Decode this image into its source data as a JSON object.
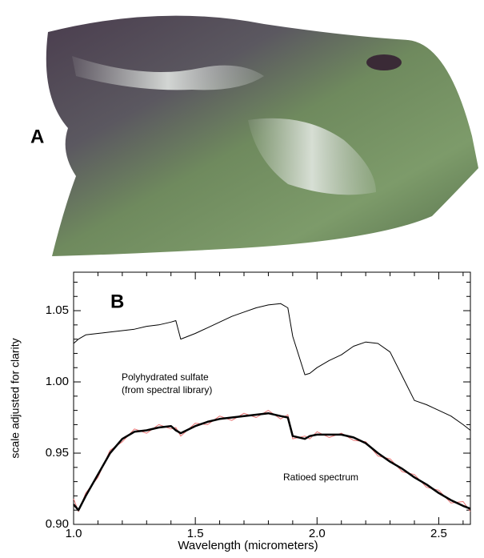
{
  "image_panel": {
    "label": "A"
  },
  "chart_data": {
    "type": "line",
    "panel_label": "B",
    "xlabel": "Wavelength (micrometers)",
    "ylabel": "scale adjusted for clarity",
    "annotations": [
      "Polyhydrated sulfate",
      "(from spectral library)",
      "Ratioed spectrum"
    ],
    "x": [
      1.0,
      1.02,
      1.05,
      1.1,
      1.15,
      1.2,
      1.25,
      1.3,
      1.35,
      1.4,
      1.42,
      1.44,
      1.5,
      1.55,
      1.6,
      1.65,
      1.7,
      1.75,
      1.8,
      1.85,
      1.88,
      1.9,
      1.95,
      1.97,
      2.0,
      2.05,
      2.1,
      2.15,
      2.2,
      2.25,
      2.3,
      2.35,
      2.4,
      2.45,
      2.5,
      2.55,
      2.6,
      2.63
    ],
    "series": [
      {
        "color": "#000000",
        "width": 1,
        "values": [
          1.027,
          1.03,
          1.033,
          1.034,
          1.035,
          1.036,
          1.037,
          1.039,
          1.04,
          1.042,
          1.043,
          1.03,
          1.034,
          1.038,
          1.042,
          1.046,
          1.049,
          1.052,
          1.054,
          1.055,
          1.052,
          1.032,
          1.005,
          1.006,
          1.01,
          1.015,
          1.019,
          1.025,
          1.028,
          1.027,
          1.021,
          1.004,
          0.987,
          0.984,
          0.98,
          0.976,
          0.97,
          0.966
        ]
      },
      {
        "color": "#e87070",
        "width": 1,
        "values": [
          0.918,
          0.909,
          0.922,
          0.933,
          0.952,
          0.958,
          0.967,
          0.964,
          0.97,
          0.967,
          0.968,
          0.962,
          0.971,
          0.97,
          0.976,
          0.973,
          0.978,
          0.975,
          0.98,
          0.974,
          0.977,
          0.96,
          0.962,
          0.96,
          0.965,
          0.961,
          0.964,
          0.959,
          0.958,
          0.948,
          0.946,
          0.937,
          0.935,
          0.926,
          0.924,
          0.915,
          0.916,
          0.909
        ]
      },
      {
        "color": "#000000",
        "width": 2.5,
        "values": [
          0.914,
          0.91,
          0.92,
          0.935,
          0.95,
          0.96,
          0.965,
          0.966,
          0.968,
          0.969,
          0.966,
          0.964,
          0.969,
          0.972,
          0.974,
          0.975,
          0.976,
          0.977,
          0.978,
          0.976,
          0.975,
          0.962,
          0.96,
          0.962,
          0.963,
          0.963,
          0.963,
          0.961,
          0.957,
          0.95,
          0.944,
          0.939,
          0.933,
          0.928,
          0.922,
          0.917,
          0.913,
          0.911
        ]
      }
    ],
    "xlim": [
      1.0,
      2.63
    ],
    "ylim": [
      0.9,
      1.077
    ],
    "xticks": [
      {
        "value": 1.0,
        "label": "1.0"
      },
      1.5,
      {
        "value": 2.0,
        "label": "2.0"
      },
      2.5
    ],
    "yticks": [
      {
        "value": 0.9,
        "label": "0.90"
      },
      0.95,
      {
        "value": 1.0,
        "label": "1.00"
      },
      1.05
    ],
    "xticks_minor": [
      1.1,
      1.2,
      1.3,
      1.4,
      1.6,
      1.7,
      1.8,
      1.9,
      2.1,
      2.2,
      2.3,
      2.4,
      2.6
    ],
    "yticks_minor": [
      0.91,
      0.92,
      0.93,
      0.94,
      0.96,
      0.97,
      0.98,
      0.99,
      1.01,
      1.02,
      1.03,
      1.04,
      1.06,
      1.07
    ],
    "grid": false
  }
}
